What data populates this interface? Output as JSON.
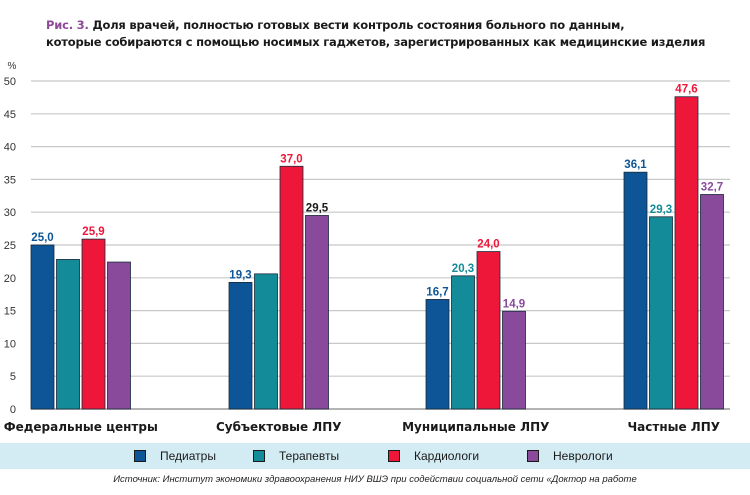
{
  "title": {
    "figure_label": "Рис. 3.",
    "line1": "Доля врачей, полностью готовых вести контроль состояния больного по данным,",
    "line2": "которые собираются с помощью носимых гаджетов, зарегистрированных как медицинские изделия"
  },
  "source": "Источник: Институт экономики здравоохранения НИУ ВШЭ при содействии социальной сети «Доктор на работе",
  "chart_data": {
    "type": "bar",
    "title": "Доля врачей, полностью готовых вести контроль состояния больного по данным, которые собираются с помощью носимых гаджетов, зарегистрированных как медицинские изделия",
    "xlabel": "",
    "ylabel": "%",
    "ylim": [
      0,
      50
    ],
    "yticks": [
      0,
      5,
      10,
      15,
      20,
      25,
      30,
      35,
      40,
      45,
      50
    ],
    "grid": true,
    "legend_position": "bottom",
    "categories": [
      "Федеральные центры",
      "Субъектовые ЛПУ",
      "Муниципальные ЛПУ",
      "Частные ЛПУ"
    ],
    "series": [
      {
        "name": "Педиатры",
        "color": "#0d5596",
        "values": [
          25.0,
          19.3,
          16.7,
          36.1
        ],
        "labels": [
          "25,0",
          "19,3",
          "16,7",
          "36,1"
        ],
        "label_color": "#0d5596"
      },
      {
        "name": "Терапевты",
        "color": "#138b98",
        "values": [
          22.8,
          20.6,
          20.3,
          29.3
        ],
        "labels": [
          null,
          null,
          "20,3",
          "29,3"
        ],
        "label_color": "#138b98"
      },
      {
        "name": "Кардиологи",
        "color": "#ee1639",
        "values": [
          25.9,
          37.0,
          24.0,
          47.6
        ],
        "labels": [
          "25,9",
          "37,0",
          "24,0",
          "47,6"
        ],
        "label_color": "#ee1639"
      },
      {
        "name": "Неврологи",
        "color": "#8a4a9c",
        "values": [
          22.4,
          29.5,
          14.9,
          32.7
        ],
        "labels": [
          null,
          "29,5",
          "14,9",
          "32,7"
        ],
        "label_color": "#8a4a9c",
        "label_colors_override": [
          null,
          "#1a1a1a",
          null,
          null
        ]
      }
    ]
  }
}
